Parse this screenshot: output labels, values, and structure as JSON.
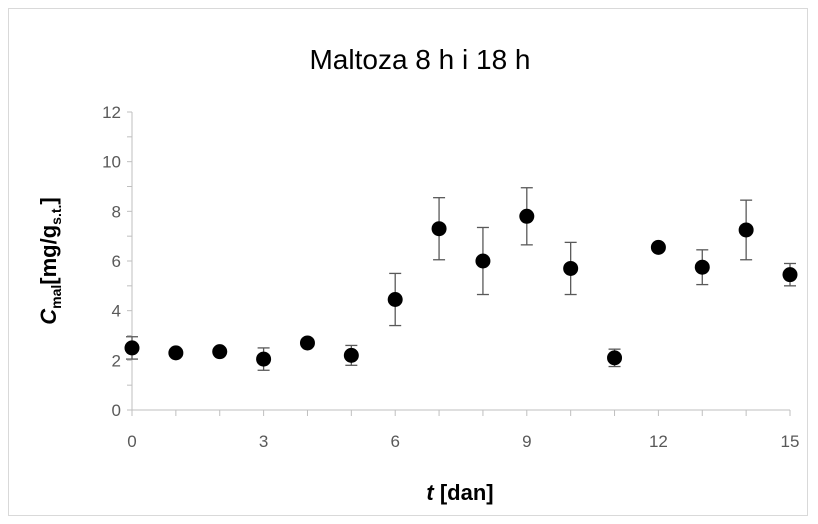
{
  "chart_data": {
    "type": "scatter",
    "title": "Maltoza 8 h i 18 h",
    "xlabel": {
      "italic": "t",
      "rest": " [dan]"
    },
    "ylabel": {
      "italic": "C",
      "sub": "mal",
      "rest": "[mg/g",
      "sub2": "s.t.",
      "end": "]"
    },
    "xlim": [
      0,
      15
    ],
    "ylim": [
      0,
      12
    ],
    "x_ticks": [
      0,
      3,
      6,
      9,
      12,
      15
    ],
    "y_ticks": [
      0,
      2,
      4,
      6,
      8,
      10,
      12
    ],
    "grid": false,
    "series": [
      {
        "x": [
          0,
          1,
          2,
          3,
          4,
          5,
          6,
          7,
          8,
          9,
          10,
          11,
          12,
          13,
          14,
          15
        ],
        "y": [
          2.5,
          2.3,
          2.35,
          2.05,
          2.7,
          2.2,
          4.45,
          7.3,
          6.0,
          7.8,
          5.7,
          2.1,
          6.55,
          5.75,
          7.25,
          5.45
        ],
        "error": [
          0.45,
          0.0,
          0.0,
          0.45,
          0.0,
          0.4,
          1.05,
          1.25,
          1.35,
          1.15,
          1.05,
          0.35,
          0.0,
          0.7,
          1.2,
          0.45
        ],
        "marker_color": "#000000",
        "error_color": "#595959"
      }
    ]
  }
}
